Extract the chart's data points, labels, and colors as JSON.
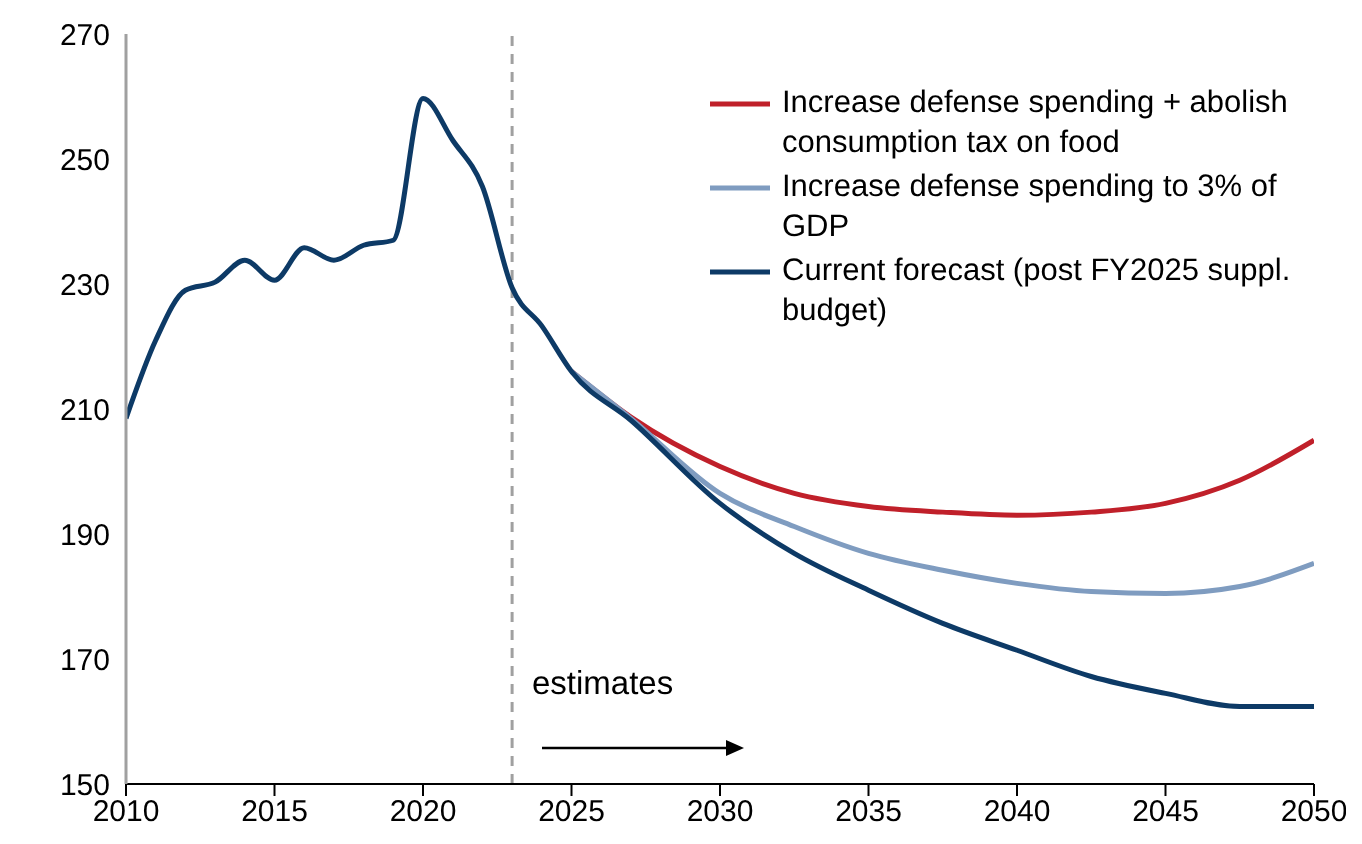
{
  "chart_data": {
    "type": "line",
    "xlim": [
      2010,
      2050
    ],
    "xticks": [
      2010,
      2015,
      2020,
      2025,
      2030,
      2035,
      2040,
      2045,
      2050
    ],
    "ylim": [
      150,
      270
    ],
    "yticks": [
      150,
      170,
      190,
      210,
      230,
      250,
      270
    ],
    "grid": false,
    "legend": "top right",
    "line_style": "solid",
    "marker": "none",
    "ref_lines": [
      {
        "axis": "x",
        "value": 2023,
        "color": "#a0a0a0",
        "line_style": "dashed"
      }
    ],
    "annotations": [
      "estimates"
    ],
    "series": [
      {
        "name": "Increase defense spending + abolish consumption tax on food",
        "color": "#c0202a",
        "x": [
          2025,
          2027,
          2030,
          2032.5,
          2035,
          2037.5,
          2040,
          2042.5,
          2045,
          2047.5,
          2050
        ],
        "values": [
          216,
          208.7,
          200.8,
          196.5,
          194.4,
          193.5,
          193,
          193.5,
          194.9,
          198.6,
          205
        ]
      },
      {
        "name": "Increase defense spending to 3% of GDP",
        "color": "#7f9cc0",
        "x": [
          2025,
          2027,
          2030,
          2032.5,
          2035,
          2037.5,
          2040,
          2042.5,
          2045,
          2047.5,
          2050
        ],
        "values": [
          216,
          208.5,
          196.5,
          191.2,
          186.9,
          184.2,
          182.1,
          180.8,
          180.5,
          181.6,
          185.3
        ]
      },
      {
        "name": "Current forecast (post FY2025 suppl. budget)",
        "color": "#0d3a66",
        "x": [
          2010,
          2011,
          2012,
          2013,
          2014,
          2015,
          2016,
          2017,
          2018,
          2019,
          2020,
          2021,
          2022,
          2023,
          2024,
          2025,
          2027,
          2030,
          2032.5,
          2035,
          2037.5,
          2040,
          2042.5,
          2045,
          2047.5,
          2050
        ],
        "values": [
          208.5,
          221,
          229,
          230.3,
          233.8,
          230.6,
          235.8,
          233.8,
          236.2,
          237,
          259.7,
          253,
          245.6,
          229.4,
          223.3,
          216,
          208.2,
          194.9,
          186.9,
          181,
          175.7,
          171.4,
          167.2,
          164.5,
          162.4,
          162.4
        ]
      }
    ]
  }
}
